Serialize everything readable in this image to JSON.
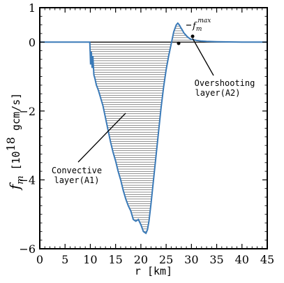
{
  "chart_data": {
    "type": "line",
    "xlabel": "r [km]",
    "ylabel_symbol": "f",
    "ylabel_sub": "m",
    "ylabel_pre": "[10",
    "ylabel_exp": "18",
    "ylabel_post": " gcm/s]",
    "xlim": [
      0,
      45
    ],
    "ylim": [
      -6,
      1
    ],
    "xticks": [
      0,
      5,
      10,
      15,
      20,
      25,
      30,
      35,
      40,
      45
    ],
    "yticks": [
      -6,
      -4,
      -2,
      0,
      1
    ],
    "yticklabels": [
      "−6",
      "−4",
      "−2",
      "0",
      "1"
    ],
    "grid": false,
    "series": [
      {
        "color": "#3a7ab8",
        "x": [
          0,
          9.9,
          10.05,
          10.2,
          10.35,
          10.5,
          10.7,
          10.9,
          11.2,
          11.6,
          12.0,
          12.5,
          13.0,
          13.5,
          14.0,
          14.5,
          15.0,
          15.5,
          16.0,
          16.5,
          17.0,
          17.5,
          18.0,
          18.5,
          19.0,
          19.5,
          20.0,
          20.5,
          21.0,
          21.3,
          21.6,
          22.0,
          22.5,
          23.0,
          23.5,
          24.0,
          24.5,
          25.0,
          25.5,
          26.0,
          26.5,
          27.0,
          27.3,
          27.6,
          27.9,
          28.2,
          28.5,
          28.8,
          29.1,
          29.4,
          29.7,
          30.0,
          31.0,
          32.0,
          33.0,
          35.0,
          40.0,
          45.0
        ],
        "y": [
          0,
          0,
          -0.65,
          -0.28,
          -0.75,
          -0.4,
          -0.95,
          -1.05,
          -1.25,
          -1.4,
          -1.6,
          -1.85,
          -2.2,
          -2.55,
          -2.9,
          -3.2,
          -3.45,
          -3.75,
          -4.0,
          -4.3,
          -4.55,
          -4.75,
          -4.9,
          -5.15,
          -5.2,
          -5.15,
          -5.3,
          -5.5,
          -5.55,
          -5.45,
          -5.2,
          -4.7,
          -4.0,
          -3.3,
          -2.6,
          -1.9,
          -1.3,
          -0.8,
          -0.4,
          -0.05,
          0.3,
          0.5,
          0.55,
          0.5,
          0.42,
          0.35,
          0.27,
          0.22,
          0.17,
          0.13,
          0.1,
          0.08,
          0.05,
          0.03,
          0.02,
          0.01,
          0.0,
          0.0
        ]
      }
    ],
    "annotations": [
      {
        "text": "Convective",
        "text2": "layer(A1)"
      },
      {
        "text": "Overshooting",
        "text2": "layer(A2)"
      },
      {
        "text_symbol": "f",
        "text_sub": "m",
        "text_sup": "max"
      }
    ]
  }
}
